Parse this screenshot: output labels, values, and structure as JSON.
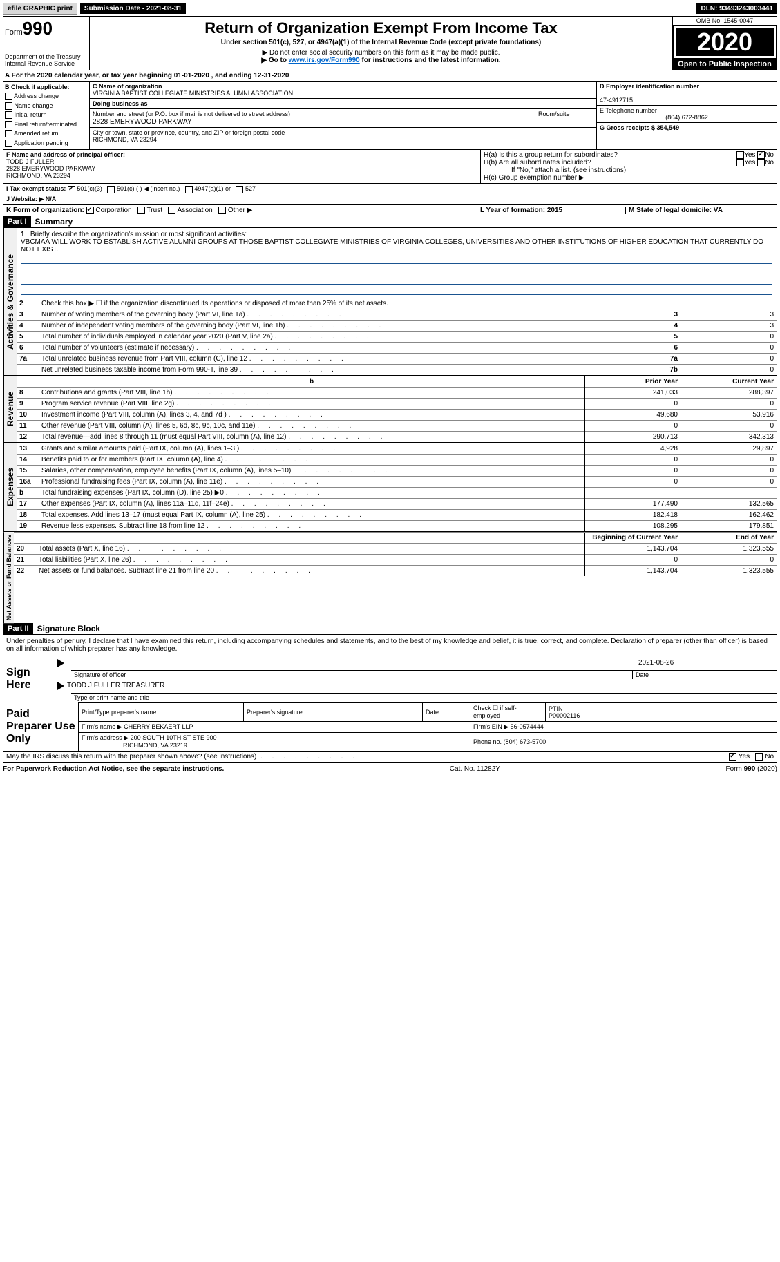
{
  "top": {
    "efile": "efile GRAPHIC print",
    "submission_label": "Submission Date - 2021-08-31",
    "dln": "DLN: 93493243003441"
  },
  "header": {
    "form_prefix": "Form",
    "form_num": "990",
    "dept": "Department of the Treasury\nInternal Revenue Service",
    "title": "Return of Organization Exempt From Income Tax",
    "subtitle": "Under section 501(c), 527, or 4947(a)(1) of the Internal Revenue Code (except private foundations)",
    "note1": "▶ Do not enter social security numbers on this form as it may be made public.",
    "note2_pre": "▶ Go to ",
    "note2_link": "www.irs.gov/Form990",
    "note2_post": " for instructions and the latest information.",
    "omb": "OMB No. 1545-0047",
    "year": "2020",
    "open": "Open to Public Inspection"
  },
  "row_a": "A For the 2020 calendar year, or tax year beginning 01-01-2020     , and ending 12-31-2020",
  "box_b": {
    "label": "B Check if applicable:",
    "items": [
      "Address change",
      "Name change",
      "Initial return",
      "Final return/terminated",
      "Amended return",
      "Application pending"
    ]
  },
  "box_c": {
    "name_label": "C Name of organization",
    "name": "VIRGINIA BAPTIST COLLEGIATE MINISTRIES ALUMNI ASSOCIATION",
    "dba_label": "Doing business as",
    "addr_label": "Number and street (or P.O. box if mail is not delivered to street address)",
    "room_label": "Room/suite",
    "addr": "2828 EMERYWOOD PARKWAY",
    "city_label": "City or town, state or province, country, and ZIP or foreign postal code",
    "city": "RICHMOND, VA  23294"
  },
  "box_de": {
    "d_label": "D Employer identification number",
    "ein": "47-4912715",
    "e_label": "E Telephone number",
    "phone": "(804) 672-8862",
    "g_label": "G Gross receipts $ 354,549"
  },
  "box_f": {
    "label": "F Name and address of principal officer:",
    "name": "TODD J FULLER",
    "addr1": "2828 EMERYWOOD PARKWAY",
    "addr2": "RICHMOND, VA  23294"
  },
  "box_h": {
    "ha": "H(a)  Is this a group return for subordinates?",
    "hb": "H(b)  Are all subordinates included?",
    "hb_note": "If \"No,\" attach a list. (see instructions)",
    "hc": "H(c)  Group exemption number ▶"
  },
  "row_i": "I    Tax-exempt status:",
  "row_i_opts": [
    "501(c)(3)",
    "501(c) (   ) ◀ (insert no.)",
    "4947(a)(1) or",
    "527"
  ],
  "row_j": "J    Website: ▶   N/A",
  "row_k": "K Form of organization:",
  "row_k_opts": [
    "Corporation",
    "Trust",
    "Association",
    "Other ▶"
  ],
  "row_l": "L Year of formation: 2015",
  "row_m": "M State of legal domicile: VA",
  "part1": {
    "header": "Part I",
    "title": "Summary",
    "line1_label": "Briefly describe the organization's mission or most significant activities:",
    "line1_text": "VBCMAA WILL WORK TO ESTABLISH ACTIVE ALUMNI GROUPS AT THOSE BAPTIST COLLEGIATE MINISTRIES OF VIRGINIA COLLEGES, UNIVERSITIES AND OTHER INSTITUTIONS OF HIGHER EDUCATION THAT CURRENTLY DO NOT EXIST.",
    "line2": "Check this box ▶ ☐  if the organization discontinued its operations or disposed of more than 25% of its net assets.",
    "col_prior": "Prior Year",
    "col_current": "Current Year",
    "col_boy": "Beginning of Current Year",
    "col_eoy": "End of Year",
    "sections": {
      "governance": "Activities & Governance",
      "revenue": "Revenue",
      "expenses": "Expenses",
      "net": "Net Assets or Fund Balances"
    },
    "lines_gov": [
      {
        "n": "3",
        "t": "Number of voting members of the governing body (Part VI, line 1a)",
        "box": "3",
        "v": "3"
      },
      {
        "n": "4",
        "t": "Number of independent voting members of the governing body (Part VI, line 1b)",
        "box": "4",
        "v": "3"
      },
      {
        "n": "5",
        "t": "Total number of individuals employed in calendar year 2020 (Part V, line 2a)",
        "box": "5",
        "v": "0"
      },
      {
        "n": "6",
        "t": "Total number of volunteers (estimate if necessary)",
        "box": "6",
        "v": "0"
      },
      {
        "n": "7a",
        "t": "Total unrelated business revenue from Part VIII, column (C), line 12",
        "box": "7a",
        "v": "0"
      },
      {
        "n": "",
        "t": "Net unrelated business taxable income from Form 990-T, line 39",
        "box": "7b",
        "v": "0"
      }
    ],
    "lines_rev": [
      {
        "n": "8",
        "t": "Contributions and grants (Part VIII, line 1h)",
        "p": "241,033",
        "c": "288,397"
      },
      {
        "n": "9",
        "t": "Program service revenue (Part VIII, line 2g)",
        "p": "0",
        "c": "0"
      },
      {
        "n": "10",
        "t": "Investment income (Part VIII, column (A), lines 3, 4, and 7d )",
        "p": "49,680",
        "c": "53,916"
      },
      {
        "n": "11",
        "t": "Other revenue (Part VIII, column (A), lines 5, 6d, 8c, 9c, 10c, and 11e)",
        "p": "0",
        "c": "0"
      },
      {
        "n": "12",
        "t": "Total revenue—add lines 8 through 11 (must equal Part VIII, column (A), line 12)",
        "p": "290,713",
        "c": "342,313"
      }
    ],
    "lines_exp": [
      {
        "n": "13",
        "t": "Grants and similar amounts paid (Part IX, column (A), lines 1–3 )",
        "p": "4,928",
        "c": "29,897"
      },
      {
        "n": "14",
        "t": "Benefits paid to or for members (Part IX, column (A), line 4)",
        "p": "0",
        "c": "0"
      },
      {
        "n": "15",
        "t": "Salaries, other compensation, employee benefits (Part IX, column (A), lines 5–10)",
        "p": "0",
        "c": "0"
      },
      {
        "n": "16a",
        "t": "Professional fundraising fees (Part IX, column (A), line 11e)",
        "p": "0",
        "c": "0"
      },
      {
        "n": "b",
        "t": "Total fundraising expenses (Part IX, column (D), line 25) ▶0",
        "p": "",
        "c": "",
        "grey": true
      },
      {
        "n": "17",
        "t": "Other expenses (Part IX, column (A), lines 11a–11d, 11f–24e)",
        "p": "177,490",
        "c": "132,565"
      },
      {
        "n": "18",
        "t": "Total expenses. Add lines 13–17 (must equal Part IX, column (A), line 25)",
        "p": "182,418",
        "c": "162,462"
      },
      {
        "n": "19",
        "t": "Revenue less expenses. Subtract line 18 from line 12",
        "p": "108,295",
        "c": "179,851"
      }
    ],
    "lines_net": [
      {
        "n": "20",
        "t": "Total assets (Part X, line 16)",
        "p": "1,143,704",
        "c": "1,323,555"
      },
      {
        "n": "21",
        "t": "Total liabilities (Part X, line 26)",
        "p": "0",
        "c": "0"
      },
      {
        "n": "22",
        "t": "Net assets or fund balances. Subtract line 21 from line 20",
        "p": "1,143,704",
        "c": "1,323,555"
      }
    ]
  },
  "part2": {
    "header": "Part II",
    "title": "Signature Block",
    "penalty": "Under penalties of perjury, I declare that I have examined this return, including accompanying schedules and statements, and to the best of my knowledge and belief, it is true, correct, and complete. Declaration of preparer (other than officer) is based on all information of which preparer has any knowledge."
  },
  "sign": {
    "label": "Sign Here",
    "date": "2021-08-26",
    "sig_label": "Signature of officer",
    "date_label": "Date",
    "name": "TODD J FULLER  TREASURER",
    "name_label": "Type or print name and title"
  },
  "preparer": {
    "label": "Paid Preparer Use Only",
    "h1": "Print/Type preparer's name",
    "h2": "Preparer's signature",
    "h3": "Date",
    "h4_pre": "Check ☐ if self-employed",
    "h5": "PTIN",
    "ptin": "P00002116",
    "firm_label": "Firm's name    ▶",
    "firm": "CHERRY BEKAERT LLP",
    "ein_label": "Firm's EIN ▶",
    "ein": "56-0574444",
    "addr_label": "Firm's address ▶",
    "addr1": "200 SOUTH 10TH ST STE 900",
    "addr2": "RICHMOND, VA  23219",
    "phone_label": "Phone no.",
    "phone": "(804) 673-5700"
  },
  "may_discuss": "May the IRS discuss this return with the preparer shown above? (see instructions)",
  "footer": {
    "left": "For Paperwork Reduction Act Notice, see the separate instructions.",
    "mid": "Cat. No. 11282Y",
    "right": "Form 990 (2020)"
  }
}
